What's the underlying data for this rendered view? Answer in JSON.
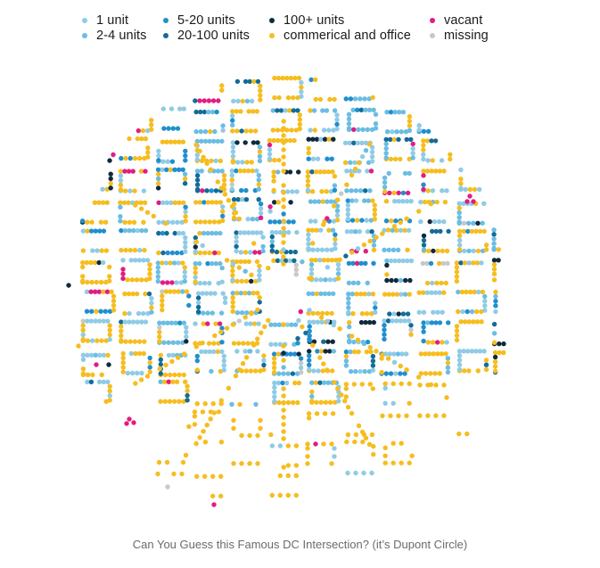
{
  "chart_data": {
    "type": "scatter",
    "title": "",
    "caption": "Can You Guess this Famous DC Intersection? (it’s Dupont Circle)",
    "legend_position": "top",
    "grid": false,
    "categories": [
      {
        "key": "one",
        "label": "1 unit",
        "color": "#8fcbe6"
      },
      {
        "key": "two4",
        "label": "2-4 units",
        "color": "#6bbde2"
      },
      {
        "key": "five20",
        "label": "5-20 units",
        "color": "#1f8fcf"
      },
      {
        "key": "twenty100",
        "label": "20-100 units",
        "color": "#136c97"
      },
      {
        "key": "hundred",
        "label": "100+ units",
        "color": "#0f2a3c"
      },
      {
        "key": "commercial",
        "label": "commerical and office",
        "color": "#f6bd1f"
      },
      {
        "key": "vacant",
        "label": "vacant",
        "color": "#e21c82"
      },
      {
        "key": "missing",
        "label": "missing",
        "color": "#c8c8c8"
      }
    ]
  }
}
